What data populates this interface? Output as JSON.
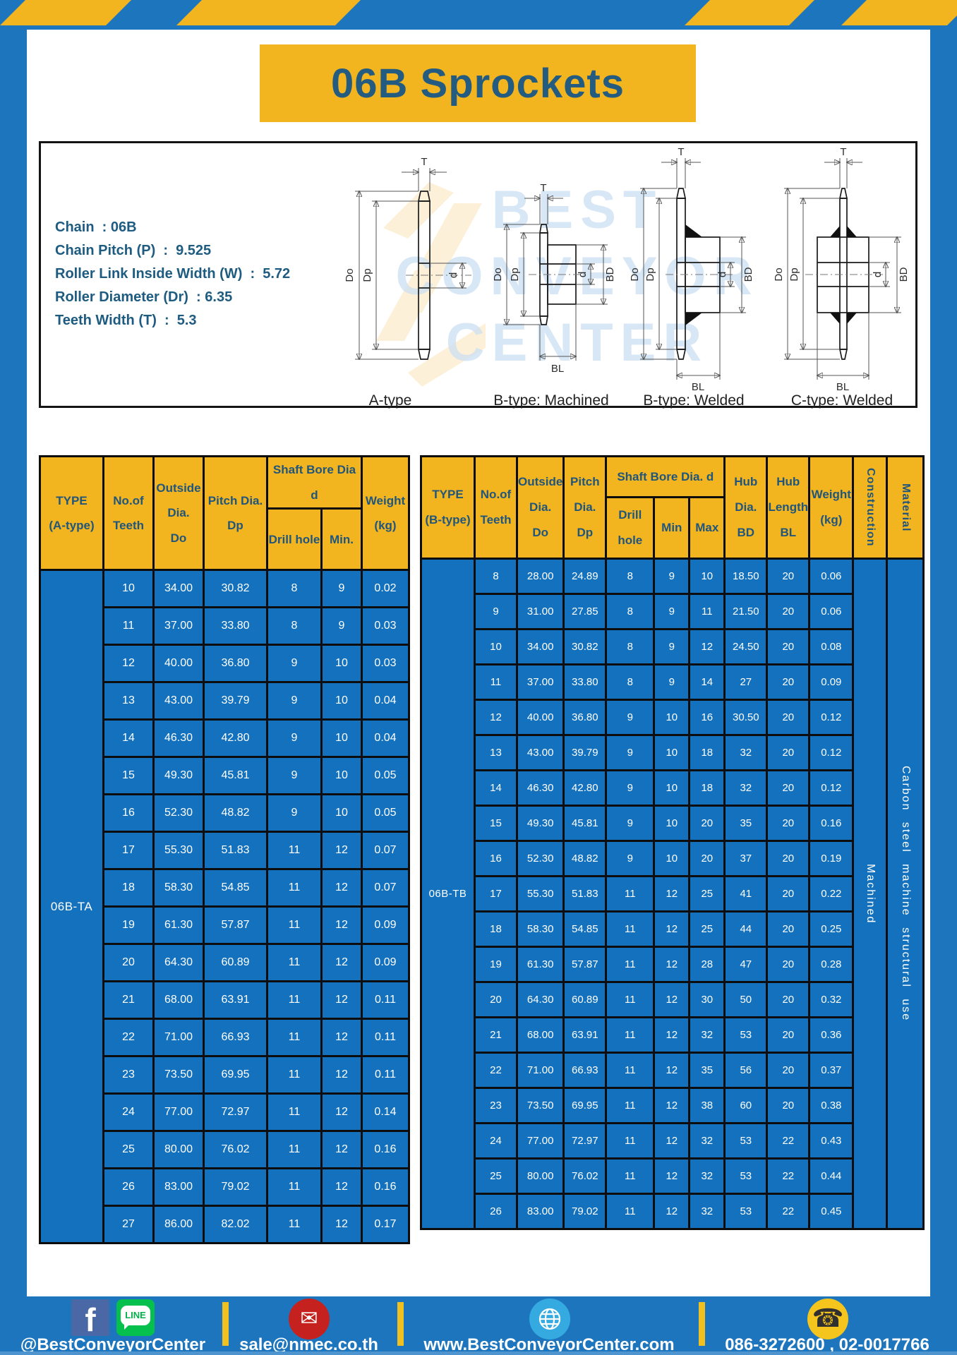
{
  "title": "06B Sprockets",
  "specs": {
    "lines": [
      "Chain  : 06B",
      "Chain Pitch (P)  :  9.525",
      "Roller Link Inside Width (W)  :  5.72",
      "Roller Diameter (Dr)  : 6.35",
      "Teeth Width (T)  :  5.3"
    ]
  },
  "diagram": {
    "watermark": [
      "BEST",
      "CONVEYOR",
      "CENTER"
    ],
    "captions": [
      "A-type",
      "B-type: Machined",
      "B-type: Welded",
      "C-type: Welded"
    ],
    "dims": {
      "T": "T",
      "Do": "Do",
      "Dp": "Dp",
      "d": "d",
      "BD": "BD",
      "BL": "BL"
    }
  },
  "table_a": {
    "headers": {
      "type": "TYPE\n(A-type)",
      "teeth": "No.of\nTeeth",
      "outside": "Outside\nDia.\nDo",
      "pitch": "Pitch Dia.\nDp",
      "shaft_group": "Shaft Bore Dia d",
      "drill": "Drill hole",
      "min": "Min.",
      "weight": "Weight\n(kg)"
    },
    "type_value": "06B-TA",
    "rows": [
      [
        "10",
        "34.00",
        "30.82",
        "8",
        "9",
        "0.02"
      ],
      [
        "11",
        "37.00",
        "33.80",
        "8",
        "9",
        "0.03"
      ],
      [
        "12",
        "40.00",
        "36.80",
        "9",
        "10",
        "0.03"
      ],
      [
        "13",
        "43.00",
        "39.79",
        "9",
        "10",
        "0.04"
      ],
      [
        "14",
        "46.30",
        "42.80",
        "9",
        "10",
        "0.04"
      ],
      [
        "15",
        "49.30",
        "45.81",
        "9",
        "10",
        "0.05"
      ],
      [
        "16",
        "52.30",
        "48.82",
        "9",
        "10",
        "0.05"
      ],
      [
        "17",
        "55.30",
        "51.83",
        "11",
        "12",
        "0.07"
      ],
      [
        "18",
        "58.30",
        "54.85",
        "11",
        "12",
        "0.07"
      ],
      [
        "19",
        "61.30",
        "57.87",
        "11",
        "12",
        "0.09"
      ],
      [
        "20",
        "64.30",
        "60.89",
        "11",
        "12",
        "0.09"
      ],
      [
        "21",
        "68.00",
        "63.91",
        "11",
        "12",
        "0.11"
      ],
      [
        "22",
        "71.00",
        "66.93",
        "11",
        "12",
        "0.11"
      ],
      [
        "23",
        "73.50",
        "69.95",
        "11",
        "12",
        "0.11"
      ],
      [
        "24",
        "77.00",
        "72.97",
        "11",
        "12",
        "0.14"
      ],
      [
        "25",
        "80.00",
        "76.02",
        "11",
        "12",
        "0.16"
      ],
      [
        "26",
        "83.00",
        "79.02",
        "11",
        "12",
        "0.16"
      ],
      [
        "27",
        "86.00",
        "82.02",
        "11",
        "12",
        "0.17"
      ]
    ]
  },
  "table_b": {
    "headers": {
      "type": "TYPE\n(B-type)",
      "teeth": "No.of\nTeeth",
      "outside": "Outside\nDia.\nDo",
      "pitch": "Pitch\nDia.\nDp",
      "shaft_group": "Shaft Bore Dia.  d",
      "drill": "Drill hole",
      "min": "Min",
      "max": "Max",
      "hub_dia": "Hub\nDia.\nBD",
      "hub_len": "Hub\nLength\nBL",
      "weight": "Weight\n(kg)",
      "construction": "Construction",
      "material": "Material"
    },
    "type_value": "06B-TB",
    "construction_value": "Machined",
    "material_value": "Carbon steel machine structural use",
    "rows": [
      [
        "8",
        "28.00",
        "24.89",
        "8",
        "9",
        "10",
        "18.50",
        "20",
        "0.06"
      ],
      [
        "9",
        "31.00",
        "27.85",
        "8",
        "9",
        "11",
        "21.50",
        "20",
        "0.06"
      ],
      [
        "10",
        "34.00",
        "30.82",
        "8",
        "9",
        "12",
        "24.50",
        "20",
        "0.08"
      ],
      [
        "11",
        "37.00",
        "33.80",
        "8",
        "9",
        "14",
        "27",
        "20",
        "0.09"
      ],
      [
        "12",
        "40.00",
        "36.80",
        "9",
        "10",
        "16",
        "30.50",
        "20",
        "0.12"
      ],
      [
        "13",
        "43.00",
        "39.79",
        "9",
        "10",
        "18",
        "32",
        "20",
        "0.12"
      ],
      [
        "14",
        "46.30",
        "42.80",
        "9",
        "10",
        "18",
        "32",
        "20",
        "0.12"
      ],
      [
        "15",
        "49.30",
        "45.81",
        "9",
        "10",
        "20",
        "35",
        "20",
        "0.16"
      ],
      [
        "16",
        "52.30",
        "48.82",
        "9",
        "10",
        "20",
        "37",
        "20",
        "0.19"
      ],
      [
        "17",
        "55.30",
        "51.83",
        "11",
        "12",
        "25",
        "41",
        "20",
        "0.22"
      ],
      [
        "18",
        "58.30",
        "54.85",
        "11",
        "12",
        "25",
        "44",
        "20",
        "0.25"
      ],
      [
        "19",
        "61.30",
        "57.87",
        "11",
        "12",
        "28",
        "47",
        "20",
        "0.28"
      ],
      [
        "20",
        "64.30",
        "60.89",
        "11",
        "12",
        "30",
        "50",
        "20",
        "0.32"
      ],
      [
        "21",
        "68.00",
        "63.91",
        "11",
        "12",
        "32",
        "53",
        "20",
        "0.36"
      ],
      [
        "22",
        "71.00",
        "66.93",
        "11",
        "12",
        "35",
        "56",
        "20",
        "0.37"
      ],
      [
        "23",
        "73.50",
        "69.95",
        "11",
        "12",
        "38",
        "60",
        "20",
        "0.38"
      ],
      [
        "24",
        "77.00",
        "72.97",
        "11",
        "12",
        "32",
        "53",
        "22",
        "0.43"
      ],
      [
        "25",
        "80.00",
        "76.02",
        "11",
        "12",
        "32",
        "53",
        "22",
        "0.44"
      ],
      [
        "26",
        "83.00",
        "79.02",
        "11",
        "12",
        "32",
        "53",
        "22",
        "0.45"
      ]
    ]
  },
  "footer": {
    "social_text": "@BestConveyorCenter",
    "email_text": "sale@nmec.co.th",
    "website_text": "www.BestConveyorCenter.com",
    "phone_text": "086-3272600 , 02-0017766",
    "icons": {
      "facebook": "f",
      "line": "LINE",
      "email": "✉",
      "phone": "☎"
    }
  },
  "colors": {
    "frame_blue": "#1d76bd",
    "accent_yellow": "#f2b41f",
    "cell_blue": "#1371be",
    "header_text": "#235c80",
    "border_black": "#0d0d0d"
  }
}
